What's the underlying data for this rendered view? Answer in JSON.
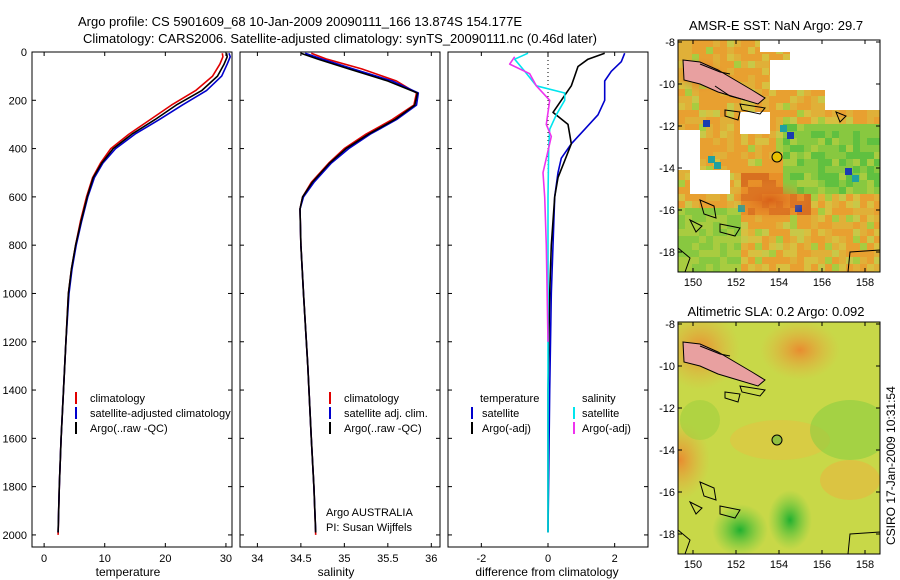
{
  "header": {
    "line1": "Argo profile: CS 5901609_68 10-Jan-2009 20090111_166 13.874S 154.177E",
    "line2": "Climatology: CARS2006. Satellite-adjusted climatology: synTS_20090111.nc (0.46d later)"
  },
  "side_text": "CSIRO 17-Jan-2009 10:31:54",
  "colors": {
    "red": "#e00000",
    "blue": "#0000cc",
    "black": "#000000",
    "cyan": "#00e5ee",
    "magenta": "#ee33ee"
  },
  "chart_data": [
    {
      "type": "line",
      "xlabel": "temperature",
      "xlim": [
        -2,
        31
      ],
      "ylim": [
        2050,
        0
      ],
      "y_reversed": true,
      "xticks": [
        0,
        10,
        20,
        30
      ],
      "yticks": [
        0,
        200,
        400,
        600,
        800,
        1000,
        1200,
        1400,
        1600,
        1800,
        2000
      ],
      "legend": [
        "climatology",
        "satellite-adjusted climatology",
        "Argo(..raw -QC)"
      ],
      "series": [
        {
          "name": "climatology",
          "color": "red",
          "points": [
            [
              29.4,
              5
            ],
            [
              29.5,
              20
            ],
            [
              29.0,
              50
            ],
            [
              27.8,
              100
            ],
            [
              25.0,
              160
            ],
            [
              21.0,
              220
            ],
            [
              17.5,
              280
            ],
            [
              14.0,
              340
            ],
            [
              11.0,
              400
            ],
            [
              9.3,
              460
            ],
            [
              8.0,
              520
            ],
            [
              7.0,
              600
            ],
            [
              6.0,
              700
            ],
            [
              5.2,
              800
            ],
            [
              4.5,
              900
            ],
            [
              4.0,
              1000
            ],
            [
              3.6,
              1200
            ],
            [
              3.2,
              1400
            ],
            [
              2.8,
              1600
            ],
            [
              2.5,
              1800
            ],
            [
              2.3,
              2000
            ]
          ]
        },
        {
          "name": "satellite-adjusted climatology",
          "color": "blue",
          "points": [
            [
              30.5,
              5
            ],
            [
              30.7,
              20
            ],
            [
              30.2,
              50
            ],
            [
              29.3,
              100
            ],
            [
              26.8,
              160
            ],
            [
              22.8,
              220
            ],
            [
              19.0,
              280
            ],
            [
              15.0,
              340
            ],
            [
              11.8,
              400
            ],
            [
              9.7,
              460
            ],
            [
              8.3,
              520
            ],
            [
              7.2,
              600
            ],
            [
              6.2,
              700
            ],
            [
              5.3,
              800
            ],
            [
              4.6,
              900
            ],
            [
              4.1,
              1000
            ],
            [
              3.6,
              1200
            ],
            [
              3.2,
              1400
            ],
            [
              2.8,
              1600
            ],
            [
              2.5,
              1800
            ],
            [
              2.3,
              1990
            ]
          ]
        },
        {
          "name": "Argo(..raw -QC)",
          "color": "black",
          "points": [
            [
              30.1,
              5
            ],
            [
              30.2,
              20
            ],
            [
              29.7,
              50
            ],
            [
              28.6,
              100
            ],
            [
              26.0,
              160
            ],
            [
              21.8,
              220
            ],
            [
              18.3,
              280
            ],
            [
              14.5,
              340
            ],
            [
              11.4,
              400
            ],
            [
              9.5,
              460
            ],
            [
              8.1,
              520
            ],
            [
              7.1,
              600
            ],
            [
              6.1,
              700
            ],
            [
              5.2,
              800
            ],
            [
              4.5,
              900
            ],
            [
              4.0,
              1000
            ],
            [
              3.6,
              1200
            ],
            [
              3.2,
              1400
            ],
            [
              2.8,
              1600
            ],
            [
              2.5,
              1800
            ],
            [
              2.3,
              1990
            ]
          ]
        }
      ]
    },
    {
      "type": "line",
      "xlabel": "salinity",
      "xlim": [
        33.8,
        36.1
      ],
      "ylim": [
        2050,
        0
      ],
      "y_reversed": true,
      "xticks": [
        34,
        34.5,
        35,
        35.5,
        36
      ],
      "legend": [
        "climatology",
        "satellite adj. clim.",
        "Argo(..raw -QC)"
      ],
      "annotation": [
        "Argo AUSTRALIA",
        "PI: Susan Wijffels"
      ],
      "series": [
        {
          "name": "climatology",
          "color": "red",
          "points": [
            [
              34.62,
              5
            ],
            [
              34.8,
              30
            ],
            [
              35.2,
              70
            ],
            [
              35.6,
              120
            ],
            [
              35.83,
              170
            ],
            [
              35.8,
              220
            ],
            [
              35.55,
              280
            ],
            [
              35.25,
              340
            ],
            [
              35.0,
              400
            ],
            [
              34.82,
              460
            ],
            [
              34.62,
              540
            ],
            [
              34.52,
              600
            ],
            [
              34.49,
              650
            ],
            [
              34.5,
              800
            ],
            [
              34.53,
              1000
            ],
            [
              34.58,
              1300
            ],
            [
              34.62,
              1600
            ],
            [
              34.65,
              1800
            ],
            [
              34.67,
              2000
            ]
          ]
        },
        {
          "name": "satellite adj. clim.",
          "color": "blue",
          "points": [
            [
              34.55,
              5
            ],
            [
              34.75,
              30
            ],
            [
              35.1,
              70
            ],
            [
              35.55,
              120
            ],
            [
              35.85,
              170
            ],
            [
              35.83,
              220
            ],
            [
              35.6,
              280
            ],
            [
              35.3,
              340
            ],
            [
              35.05,
              400
            ],
            [
              34.85,
              460
            ],
            [
              34.65,
              540
            ],
            [
              34.53,
              600
            ],
            [
              34.49,
              650
            ],
            [
              34.5,
              800
            ],
            [
              34.53,
              1000
            ],
            [
              34.58,
              1300
            ],
            [
              34.62,
              1600
            ],
            [
              34.65,
              1800
            ],
            [
              34.67,
              1990
            ]
          ]
        },
        {
          "name": "Argo(..raw -QC)",
          "color": "black",
          "points": [
            [
              34.5,
              5
            ],
            [
              34.7,
              30
            ],
            [
              35.05,
              70
            ],
            [
              35.5,
              120
            ],
            [
              35.84,
              170
            ],
            [
              35.81,
              220
            ],
            [
              35.58,
              280
            ],
            [
              35.28,
              340
            ],
            [
              35.02,
              400
            ],
            [
              34.83,
              460
            ],
            [
              34.63,
              540
            ],
            [
              34.52,
              600
            ],
            [
              34.49,
              650
            ],
            [
              34.5,
              800
            ],
            [
              34.53,
              1000
            ],
            [
              34.58,
              1300
            ],
            [
              34.62,
              1600
            ],
            [
              34.65,
              1800
            ],
            [
              34.67,
              1990
            ]
          ]
        }
      ]
    },
    {
      "type": "line",
      "xlabel": "difference from climatology",
      "xlim": [
        -3,
        3
      ],
      "ylim": [
        2050,
        0
      ],
      "y_reversed": true,
      "xticks": [
        -2,
        0,
        2
      ],
      "legend_temperature": {
        "title": "temperature",
        "items": [
          "satellite",
          "Argo(-adj)"
        ]
      },
      "legend_salinity": {
        "title": "salinity",
        "items": [
          "satellite",
          "Argo(-adj)"
        ]
      },
      "series": [
        {
          "name": "satellite",
          "group": "temperature",
          "color": "blue",
          "points": [
            [
              2.3,
              5
            ],
            [
              2.2,
              40
            ],
            [
              1.9,
              80
            ],
            [
              1.7,
              120
            ],
            [
              1.7,
              160
            ],
            [
              1.7,
              200
            ],
            [
              1.5,
              260
            ],
            [
              1.1,
              320
            ],
            [
              0.7,
              380
            ],
            [
              0.4,
              440
            ],
            [
              0.3,
              500
            ],
            [
              0.2,
              600
            ],
            [
              0.15,
              800
            ],
            [
              0.1,
              1000
            ],
            [
              0.05,
              1400
            ],
            [
              0,
              1990
            ]
          ]
        },
        {
          "name": "Argo(-adj)",
          "group": "temperature",
          "color": "black",
          "points": [
            [
              1.7,
              5
            ],
            [
              1.2,
              30
            ],
            [
              0.9,
              60
            ],
            [
              0.8,
              100
            ],
            [
              0.7,
              140
            ],
            [
              0.4,
              200
            ],
            [
              0.15,
              250
            ],
            [
              0.6,
              300
            ],
            [
              0.7,
              380
            ],
            [
              0.5,
              450
            ],
            [
              0.3,
              520
            ],
            [
              0.2,
              600
            ],
            [
              0.1,
              800
            ],
            [
              0.05,
              1000
            ],
            [
              0,
              1400
            ],
            [
              0,
              1990
            ]
          ]
        },
        {
          "name": "satellite",
          "group": "salinity",
          "color": "cyan",
          "points": [
            [
              -0.6,
              5
            ],
            [
              -1.0,
              30
            ],
            [
              -0.7,
              80
            ],
            [
              -0.35,
              140
            ],
            [
              0.5,
              170
            ],
            [
              0.5,
              200
            ],
            [
              0.25,
              260
            ],
            [
              0.05,
              320
            ],
            [
              0.02,
              400
            ],
            [
              0,
              600
            ],
            [
              0,
              1990
            ]
          ]
        },
        {
          "name": "Argo(-adj)",
          "group": "salinity",
          "color": "magenta",
          "points": [
            [
              -1.0,
              20
            ],
            [
              -1.15,
              50
            ],
            [
              -0.55,
              90
            ],
            [
              -0.35,
              140
            ],
            [
              0.05,
              200
            ],
            [
              -0.05,
              300
            ],
            [
              0.1,
              350
            ],
            [
              -0.15,
              500
            ],
            [
              -0.1,
              600
            ],
            [
              -0.05,
              800
            ],
            [
              0,
              1200
            ]
          ]
        }
      ]
    }
  ],
  "map_sst": {
    "title": "AMSR-E SST: NaN Argo: 29.7",
    "lon_ticks": [
      "150",
      "152",
      "154",
      "156",
      "158"
    ],
    "lat_ticks": [
      "-8",
      "-10",
      "-12",
      "-14",
      "-16",
      "-18"
    ]
  },
  "map_sla": {
    "title": "Altimetric SLA: 0.2 Argo: 0.092",
    "lon_ticks": [
      "150",
      "152",
      "154",
      "156",
      "158"
    ],
    "lat_ticks": [
      "-8",
      "-10",
      "-12",
      "-14",
      "-16",
      "-18"
    ]
  }
}
